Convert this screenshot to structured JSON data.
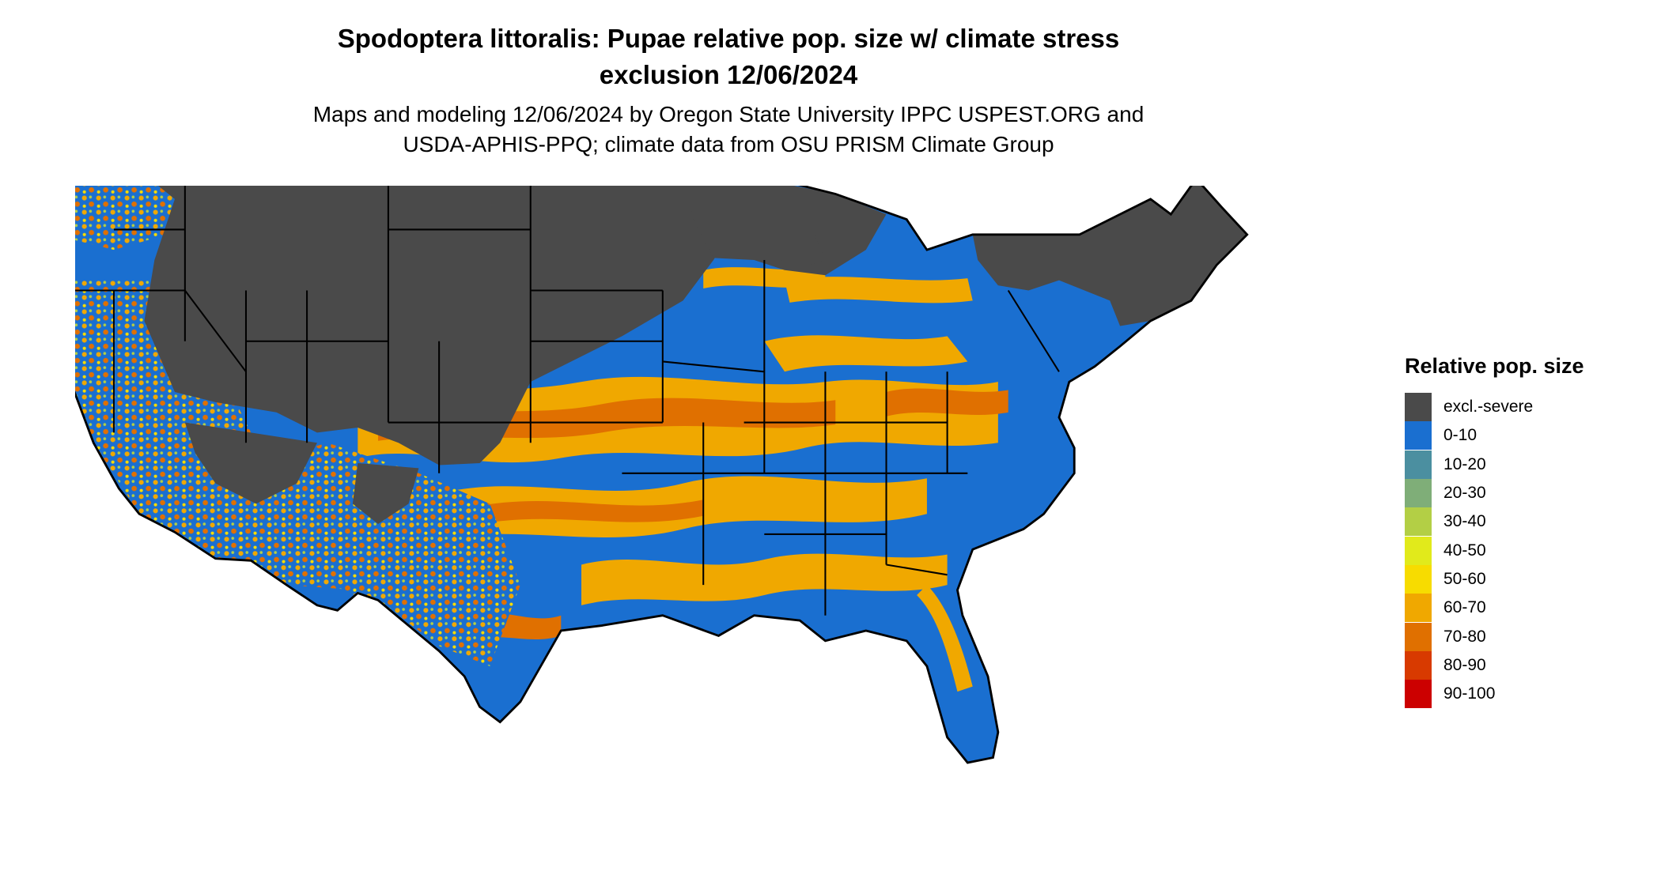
{
  "title": {
    "line1": "Spodoptera littoralis: Pupae relative pop. size w/ climate stress",
    "line2": "exclusion 12/06/2024"
  },
  "subtitle": {
    "line1": "Maps and modeling 12/06/2024 by Oregon State University IPPC USPEST.ORG and",
    "line2": "USDA-APHIS-PPQ; climate data from OSU PRISM Climate Group"
  },
  "legend": {
    "title": "Relative pop. size",
    "items": [
      {
        "label": "excl.-severe",
        "color": "#4a4a4a"
      },
      {
        "label": "0-10",
        "color": "#1a6fd0"
      },
      {
        "label": "10-20",
        "color": "#4b8fa0"
      },
      {
        "label": "20-30",
        "color": "#7fae78"
      },
      {
        "label": "30-40",
        "color": "#b3cf45"
      },
      {
        "label": "40-50",
        "color": "#e1ea1b"
      },
      {
        "label": "50-60",
        "color": "#f7dc00"
      },
      {
        "label": "60-70",
        "color": "#f0a800"
      },
      {
        "label": "70-80",
        "color": "#e07000"
      },
      {
        "label": "80-90",
        "color": "#d83a00"
      },
      {
        "label": "90-100",
        "color": "#cc0000"
      }
    ]
  }
}
